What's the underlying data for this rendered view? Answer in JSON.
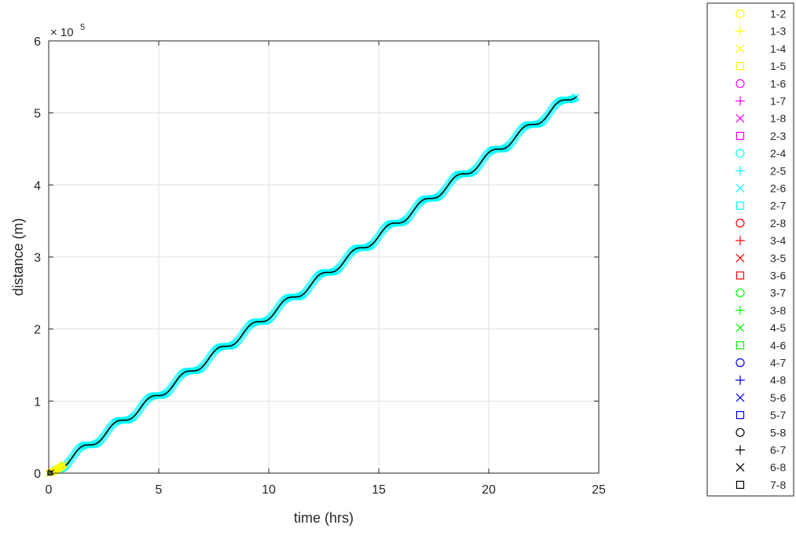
{
  "chart_data": {
    "type": "scatter",
    "title": "",
    "xlabel": "time (hrs)",
    "ylabel": "distance (m)",
    "xlim": [
      0,
      25
    ],
    "ylim": [
      0,
      6
    ],
    "y_exponent_label": "× 10",
    "y_exponent": "5",
    "xticks": [
      0,
      5,
      10,
      15,
      20,
      25
    ],
    "yticks": [
      0,
      1,
      2,
      3,
      4,
      5,
      6
    ],
    "grid": true,
    "legend_position": "outside-right",
    "main_trace": {
      "series_name": "2-6",
      "color": "#00ffff",
      "marker": "x",
      "line_color": "#000000",
      "x_range": [
        0.3,
        24.0
      ],
      "y_start": 0.05,
      "y_end": 5.28,
      "step_period_hours": 1.55,
      "approx_plateaus": [
        0.33,
        0.65,
        0.98,
        1.31,
        1.63,
        1.96,
        2.29,
        2.62,
        2.94,
        3.27,
        3.6,
        3.93,
        4.27,
        4.6,
        4.94
      ]
    },
    "yellow_cluster": {
      "series_name": "1-4",
      "color": "#ffff00",
      "x_range": [
        0.0,
        0.7
      ],
      "y_range": [
        0.0,
        0.12
      ]
    },
    "legend": [
      {
        "label": "1-2",
        "marker": "o",
        "color": "#ffff00"
      },
      {
        "label": "1-3",
        "marker": "+",
        "color": "#ffff00"
      },
      {
        "label": "1-4",
        "marker": "x",
        "color": "#ffff00"
      },
      {
        "label": "1-5",
        "marker": "s",
        "color": "#ffff00"
      },
      {
        "label": "1-6",
        "marker": "o",
        "color": "#ff00ff"
      },
      {
        "label": "1-7",
        "marker": "+",
        "color": "#ff00ff"
      },
      {
        "label": "1-8",
        "marker": "x",
        "color": "#ff00ff"
      },
      {
        "label": "2-3",
        "marker": "s",
        "color": "#ff00ff"
      },
      {
        "label": "2-4",
        "marker": "o",
        "color": "#00ffff"
      },
      {
        "label": "2-5",
        "marker": "+",
        "color": "#00ffff"
      },
      {
        "label": "2-6",
        "marker": "x",
        "color": "#00ffff"
      },
      {
        "label": "2-7",
        "marker": "s",
        "color": "#00ffff"
      },
      {
        "label": "2-8",
        "marker": "o",
        "color": "#ff0000"
      },
      {
        "label": "3-4",
        "marker": "+",
        "color": "#ff0000"
      },
      {
        "label": "3-5",
        "marker": "x",
        "color": "#ff0000"
      },
      {
        "label": "3-6",
        "marker": "s",
        "color": "#ff0000"
      },
      {
        "label": "3-7",
        "marker": "o",
        "color": "#00ff00"
      },
      {
        "label": "3-8",
        "marker": "+",
        "color": "#00ff00"
      },
      {
        "label": "4-5",
        "marker": "x",
        "color": "#00ff00"
      },
      {
        "label": "4-6",
        "marker": "s",
        "color": "#00ff00"
      },
      {
        "label": "4-7",
        "marker": "o",
        "color": "#0000ff"
      },
      {
        "label": "4-8",
        "marker": "+",
        "color": "#0000ff"
      },
      {
        "label": "5-6",
        "marker": "x",
        "color": "#0000ff"
      },
      {
        "label": "5-7",
        "marker": "s",
        "color": "#0000ff"
      },
      {
        "label": "5-8",
        "marker": "o",
        "color": "#000000"
      },
      {
        "label": "6-7",
        "marker": "+",
        "color": "#000000"
      },
      {
        "label": "6-8",
        "marker": "x",
        "color": "#000000"
      },
      {
        "label": "7-8",
        "marker": "s",
        "color": "#000000"
      }
    ]
  }
}
